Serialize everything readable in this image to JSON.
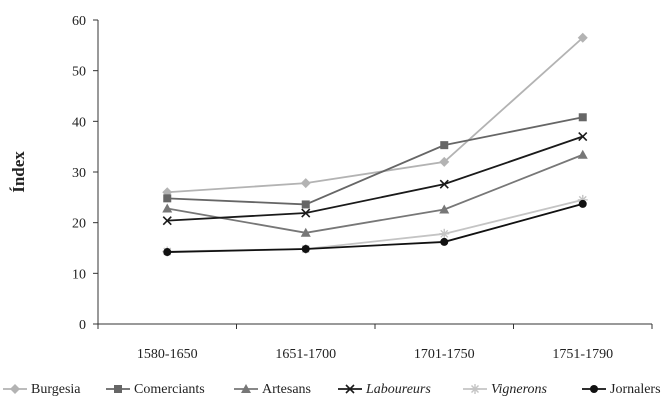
{
  "chart_data": {
    "type": "line",
    "title": "",
    "xlabel": "",
    "ylabel": "Índex",
    "categories": [
      "1580-1650",
      "1651-1700",
      "1701-1750",
      "1751-1790"
    ],
    "ylim": [
      0,
      60
    ],
    "yticks": [
      "0",
      "10",
      "20",
      "30",
      "40",
      "50",
      "60"
    ],
    "grid": false,
    "legend_position": "bottom",
    "series": [
      {
        "name": "Burgesia",
        "values": [
          26,
          27.8,
          32,
          56.5
        ],
        "color": "#b3b3b3",
        "marker": "diamond",
        "italic": false
      },
      {
        "name": "Comerciants",
        "values": [
          24.8,
          23.6,
          35.3,
          40.8
        ],
        "color": "#666666",
        "marker": "square",
        "italic": false
      },
      {
        "name": "Artesans",
        "values": [
          22.8,
          18,
          22.6,
          33.4
        ],
        "color": "#777777",
        "marker": "triangle",
        "italic": false
      },
      {
        "name": "Laboureurs",
        "values": [
          20.4,
          21.9,
          27.6,
          37
        ],
        "color": "#1a1a1a",
        "marker": "x",
        "italic": true
      },
      {
        "name": "Vignerons",
        "values": [
          14.3,
          14.8,
          17.8,
          24.5
        ],
        "color": "#c4c4c4",
        "marker": "asterisk",
        "italic": true
      },
      {
        "name": "Jornalers",
        "values": [
          14.2,
          14.8,
          16.2,
          23.7
        ],
        "color": "#111111",
        "marker": "circle",
        "italic": false
      }
    ]
  }
}
